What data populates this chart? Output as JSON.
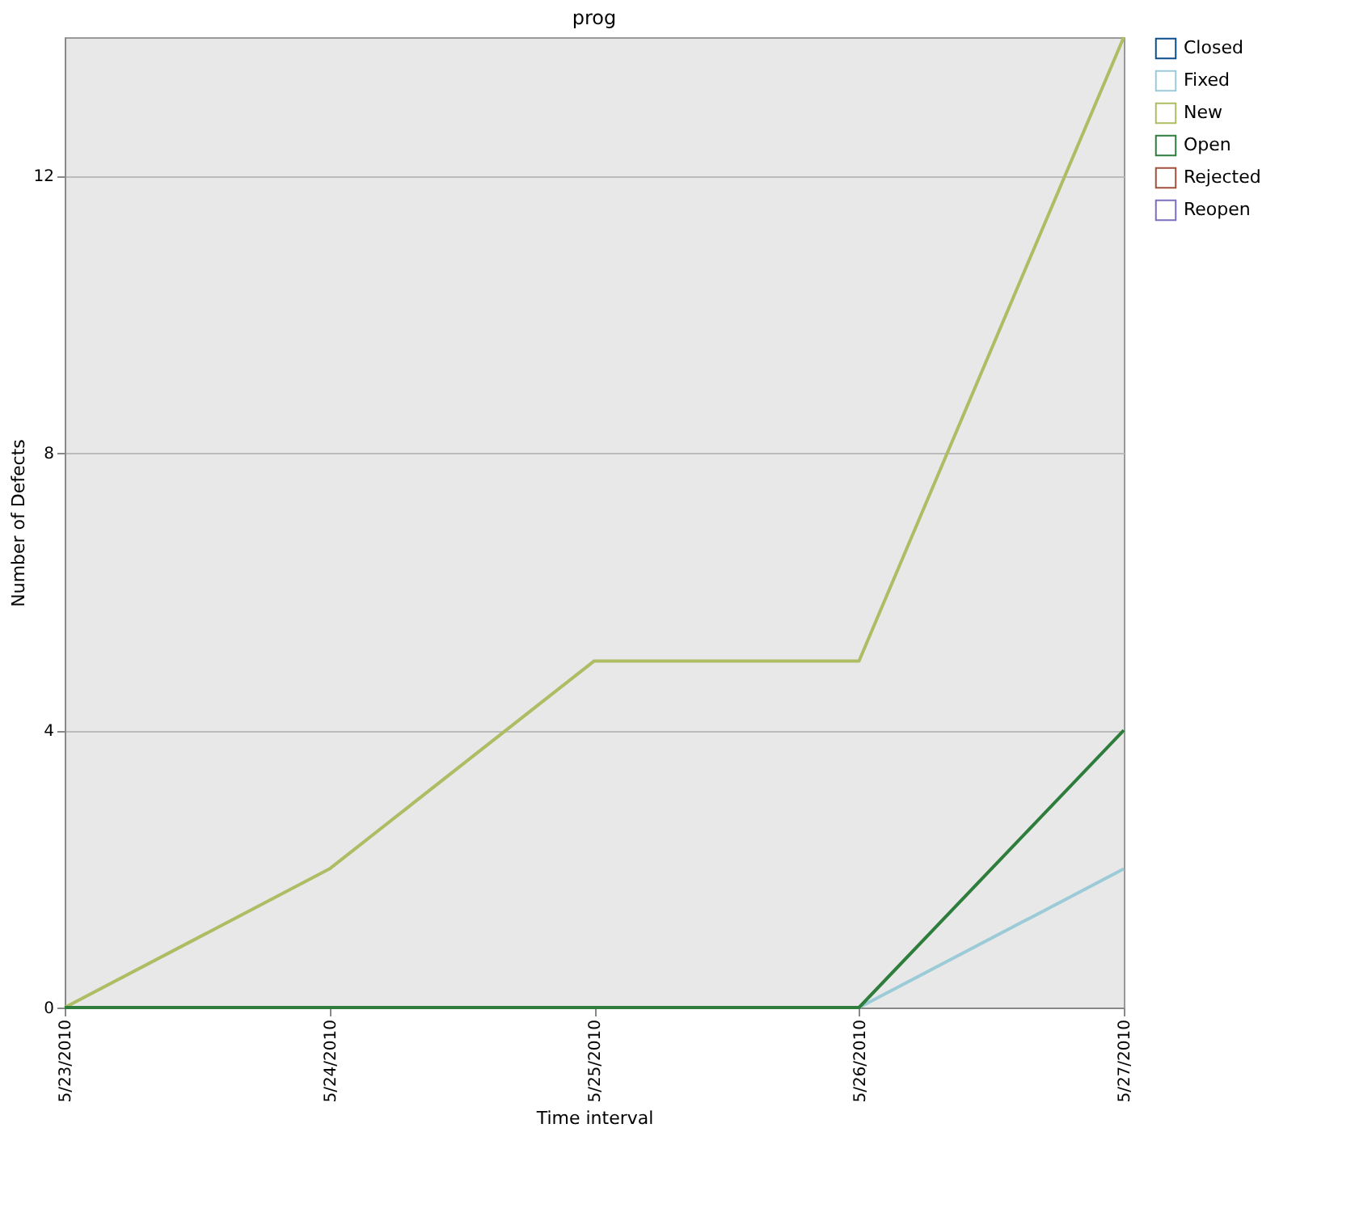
{
  "chart_data": {
    "type": "line",
    "title": "prog",
    "xlabel": "Time interval",
    "ylabel": "Number of Defects",
    "categories": [
      "5/23/2010",
      "5/24/2010",
      "5/25/2010",
      "5/26/2010",
      "5/27/2010"
    ],
    "series": [
      {
        "name": "Closed",
        "color": "#0b4f8a",
        "values": [
          null,
          null,
          null,
          null,
          null
        ]
      },
      {
        "name": "Fixed",
        "color": "#9ccbd8",
        "values": [
          null,
          null,
          null,
          0,
          2
        ]
      },
      {
        "name": "New",
        "color": "#aebd64",
        "values": [
          0,
          2,
          5,
          5,
          14
        ]
      },
      {
        "name": "Open",
        "color": "#2e7d3c",
        "values": [
          0,
          0,
          0,
          0,
          4
        ]
      },
      {
        "name": "Rejected",
        "color": "#a0503f",
        "values": [
          null,
          null,
          null,
          null,
          null
        ]
      },
      {
        "name": "Reopen",
        "color": "#7b6fc0",
        "values": [
          null,
          null,
          null,
          null,
          null
        ]
      }
    ],
    "ylim": [
      0,
      14
    ],
    "yticks": [
      0,
      4,
      8,
      12
    ],
    "grid": "y",
    "legend": "top right"
  }
}
